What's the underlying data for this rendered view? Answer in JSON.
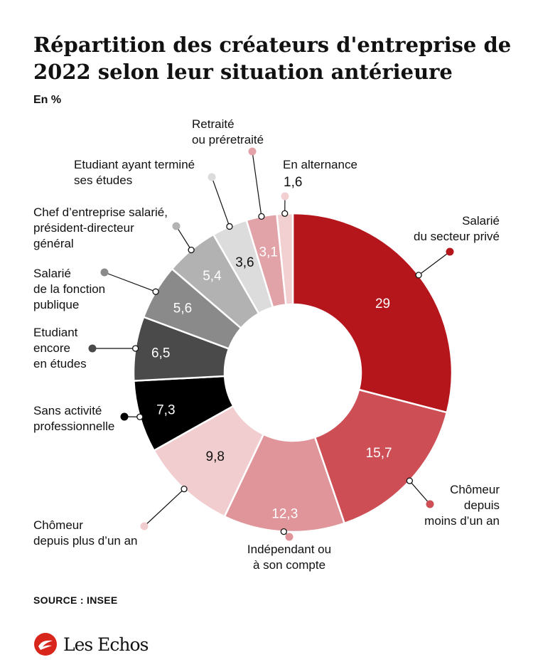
{
  "title": "Répartition des créateurs d'entreprise de 2022 selon leur situation antérieure",
  "unit": "En %",
  "source": "SOURCE : INSEE",
  "brand": "Les Echos",
  "colors": {
    "brand_red": "#d8261c"
  },
  "chart_data": {
    "type": "pie",
    "donut": true,
    "slices": [
      {
        "label": "Salarié du secteur privé",
        "value": 29,
        "value_label": "29",
        "color": "#b5161c"
      },
      {
        "label": "Chômeur depuis moins d'un an",
        "value": 15.7,
        "value_label": "15,7",
        "color": "#cd4e55"
      },
      {
        "label": "Indépendant ou à son compte",
        "value": 12.3,
        "value_label": "12,3",
        "color": "#df959a"
      },
      {
        "label": "Chômeur depuis plus d'un an",
        "value": 9.8,
        "value_label": "9,8",
        "color": "#f1cdcf"
      },
      {
        "label": "Sans activité professionnelle",
        "value": 7.3,
        "value_label": "7,3",
        "color": "#000000"
      },
      {
        "label": "Etudiant encore en études",
        "value": 6.5,
        "value_label": "6,5",
        "color": "#4a4a4a"
      },
      {
        "label": "Salarié de la fonction publique",
        "value": 5.6,
        "value_label": "5,6",
        "color": "#8a8a8a"
      },
      {
        "label": "Chef d'entreprise salarié, président-directeur général",
        "value": 5.4,
        "value_label": "5,4",
        "color": "#b2b2b2"
      },
      {
        "label": "Etudiant ayant terminé ses études",
        "value": 3.6,
        "value_label": "3,6",
        "color": "#dcdcdc"
      },
      {
        "label": "Retraité ou préretraité",
        "value": 3.1,
        "value_label": "3,1",
        "color": "#e2a3a8"
      },
      {
        "label": "En alternance",
        "value": 1.6,
        "value_label": "1,6",
        "color": "#f2d0d2"
      }
    ]
  }
}
